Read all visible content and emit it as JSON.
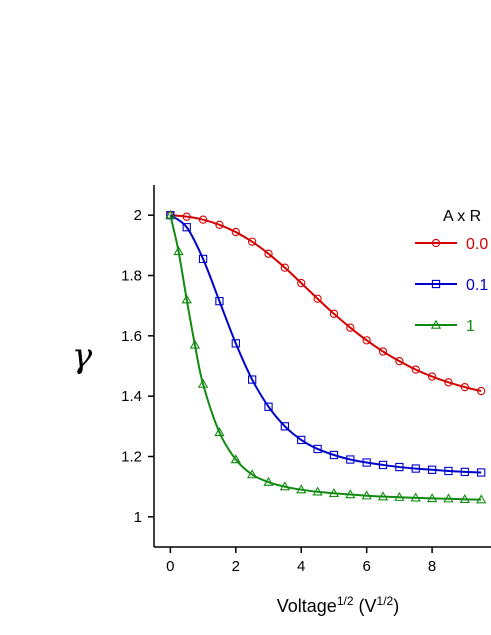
{
  "chart_data": {
    "type": "line",
    "title": "",
    "xlabel": "Voltage",
    "xlabel_sup": "1/2",
    "xlabel_unit": " (V",
    "xlabel_unit_sup": "1/2",
    "xlabel_close": ")",
    "ylabel": "γ",
    "xlim": [
      -0.5,
      9.8
    ],
    "ylim": [
      0.9,
      2.1
    ],
    "x_ticks": [
      0,
      2,
      4,
      6,
      8
    ],
    "y_ticks": [
      1,
      1.2,
      1.4,
      1.6,
      1.8,
      2
    ],
    "x_tick_labels": [
      "0",
      "2",
      "4",
      "6",
      "8"
    ],
    "y_tick_labels": [
      "1",
      "1.2",
      "1.4",
      "1.6",
      "1.8",
      "2"
    ],
    "grid": false,
    "legend": {
      "placement": "top-right",
      "title": "A x R"
    },
    "series": [
      {
        "name": "0.0",
        "color": "#d40000",
        "marker": "circle",
        "x": [
          0,
          0.5,
          1,
          1.5,
          2,
          2.5,
          3,
          3.5,
          4,
          4.5,
          5,
          5.5,
          6,
          6.5,
          7,
          7.5,
          8,
          8.5,
          9,
          9.5
        ],
        "y": [
          2.0,
          1.995,
          1.985,
          1.968,
          1.944,
          1.912,
          1.872,
          1.826,
          1.775,
          1.723,
          1.673,
          1.627,
          1.585,
          1.548,
          1.516,
          1.488,
          1.465,
          1.446,
          1.43,
          1.417
        ]
      },
      {
        "name": "0.1",
        "color": "#0000cc",
        "marker": "square",
        "x": [
          0,
          0.5,
          1,
          1.5,
          2,
          2.5,
          3,
          3.5,
          4,
          4.5,
          5,
          5.5,
          6,
          6.5,
          7,
          7.5,
          8,
          8.5,
          9,
          9.5
        ],
        "y": [
          2.0,
          1.96,
          1.855,
          1.715,
          1.575,
          1.455,
          1.365,
          1.3,
          1.255,
          1.225,
          1.205,
          1.19,
          1.18,
          1.172,
          1.165,
          1.16,
          1.156,
          1.152,
          1.149,
          1.147
        ]
      },
      {
        "name": "1",
        "color": "#118a11",
        "marker": "triangle",
        "x": [
          0,
          0.25,
          0.5,
          0.75,
          1,
          1.5,
          2,
          2.5,
          3,
          3.5,
          4,
          4.5,
          5,
          5.5,
          6,
          6.5,
          7,
          7.5,
          8,
          8.5,
          9,
          9.5
        ],
        "y": [
          2.0,
          1.88,
          1.72,
          1.57,
          1.44,
          1.28,
          1.19,
          1.14,
          1.115,
          1.1,
          1.09,
          1.083,
          1.078,
          1.074,
          1.07,
          1.067,
          1.065,
          1.063,
          1.061,
          1.06,
          1.058,
          1.057
        ]
      }
    ]
  }
}
